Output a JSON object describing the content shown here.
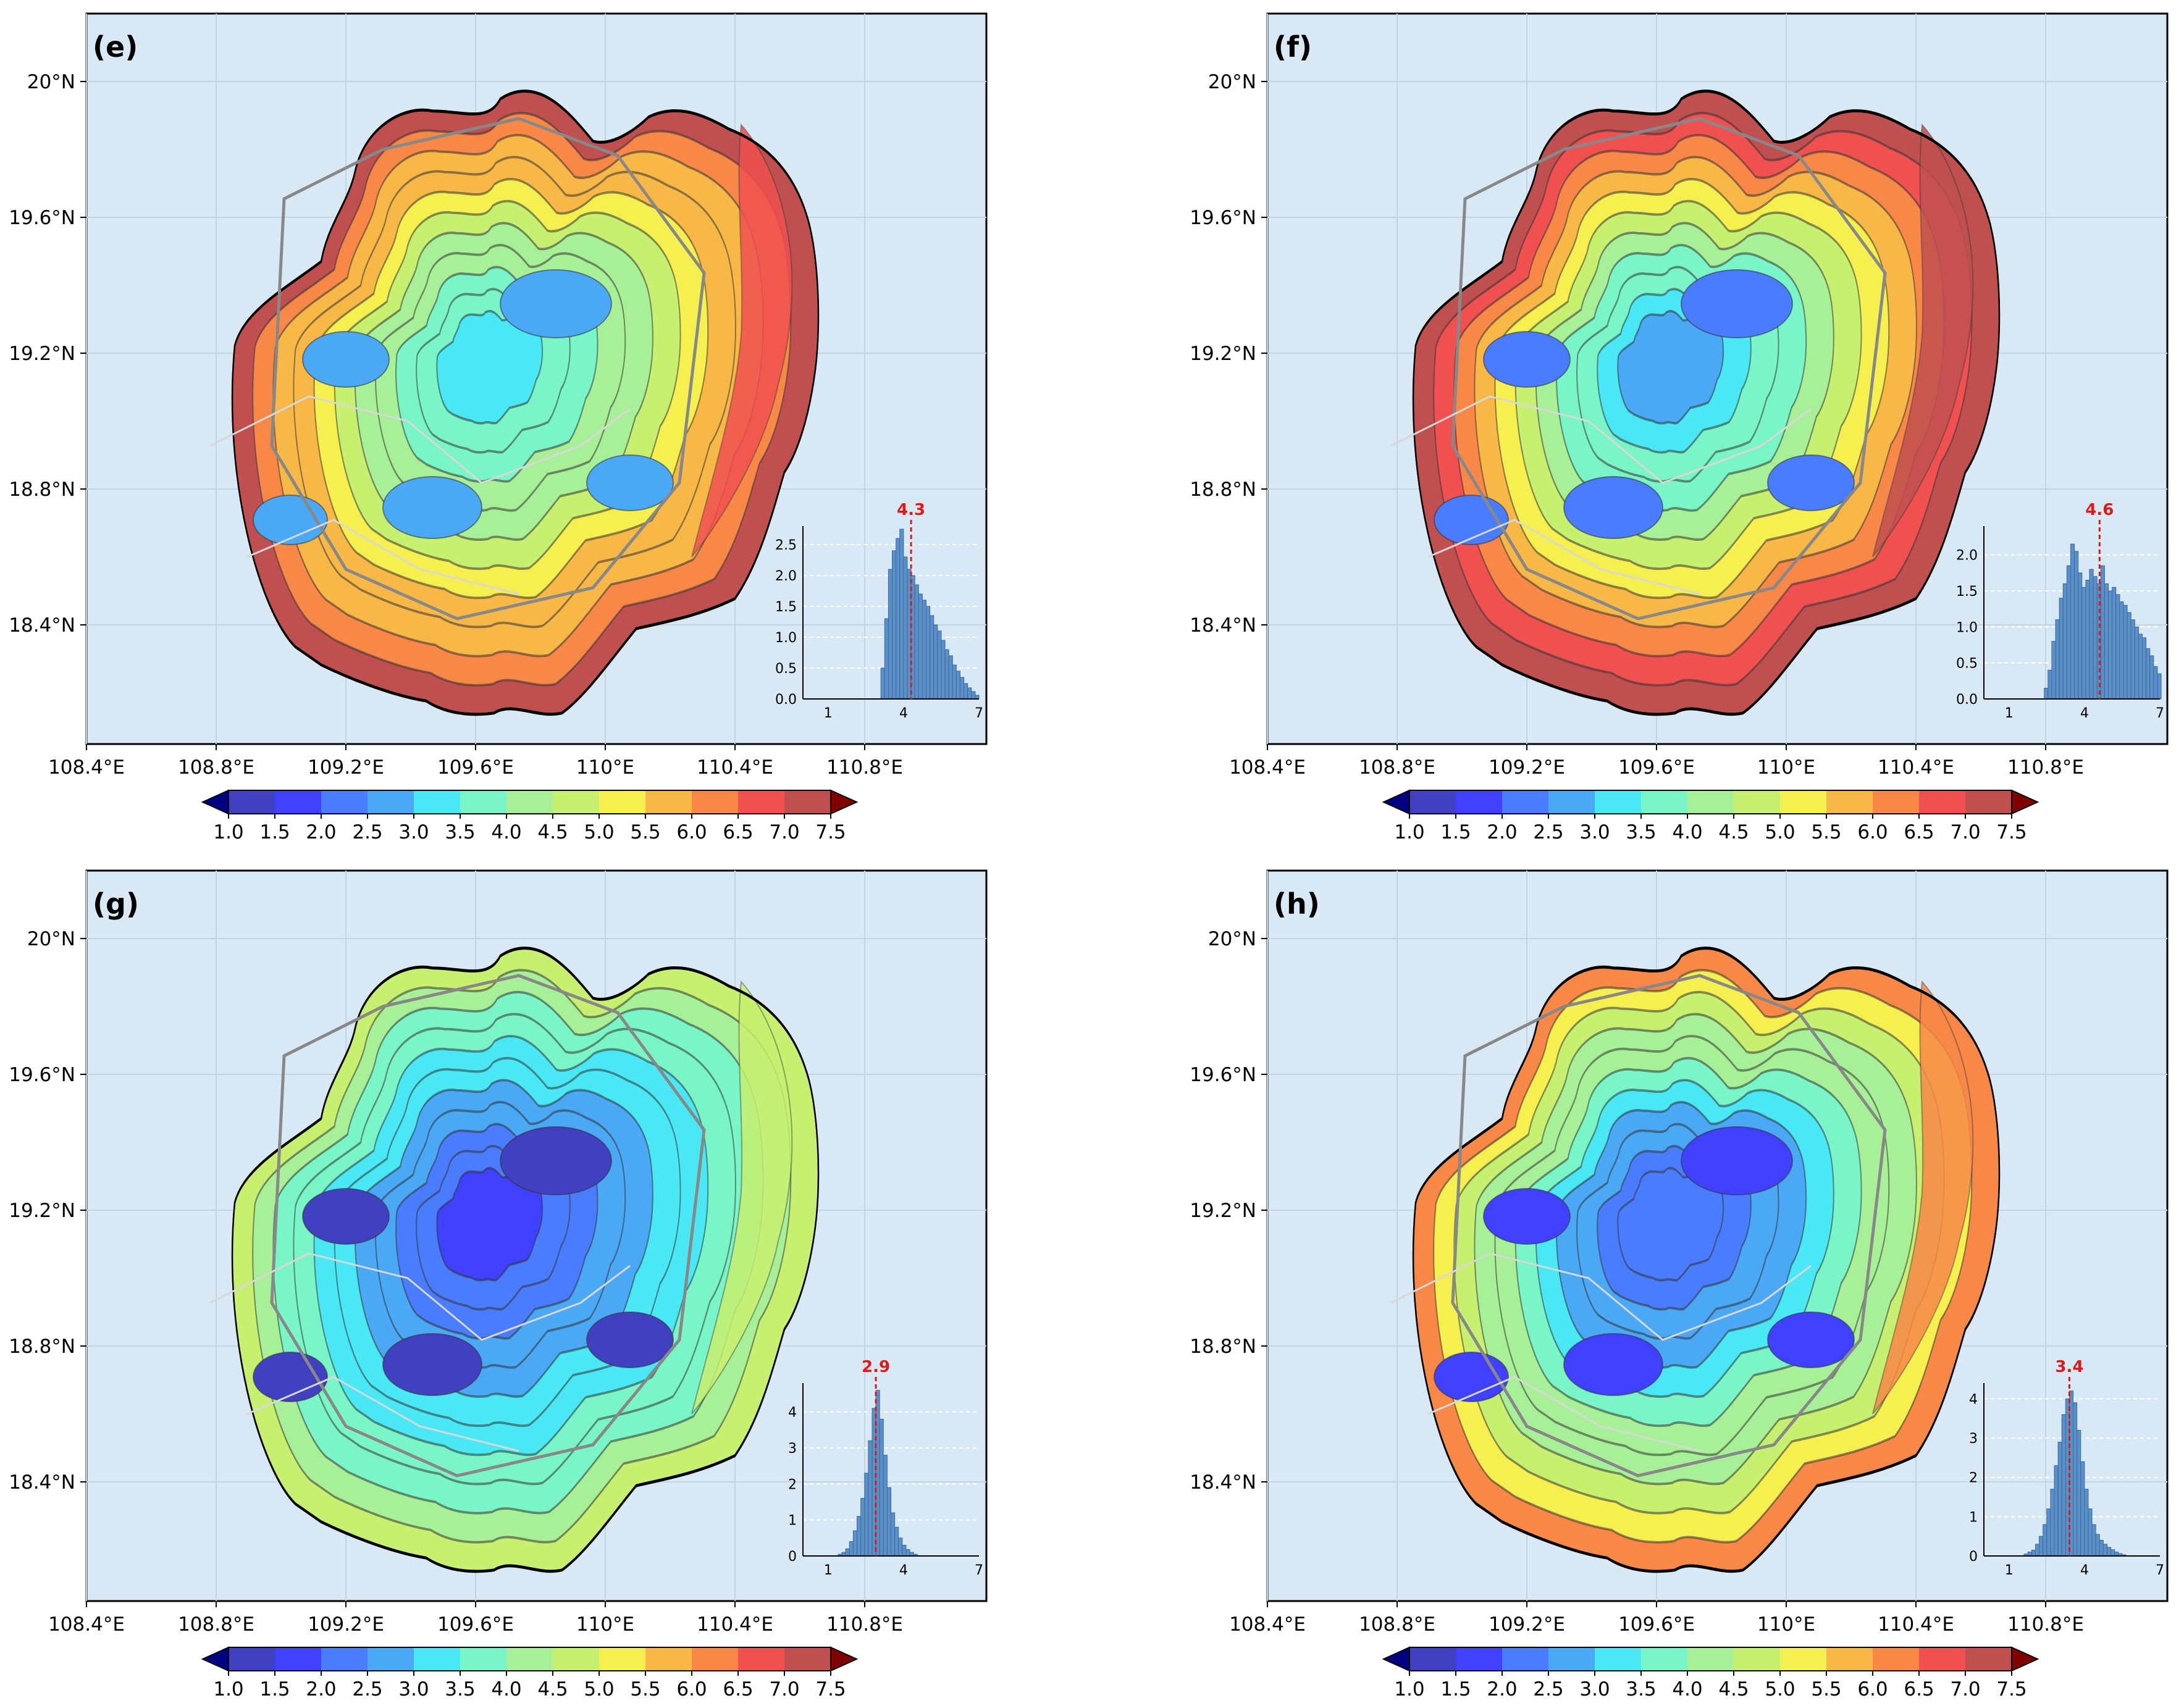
{
  "palette": [
    "#000080",
    "#4040c0",
    "#4040ff",
    "#4a7cff",
    "#4aa8f5",
    "#4ae8f5",
    "#7af5c8",
    "#a8f098",
    "#c8f070",
    "#f5f050",
    "#f8b848",
    "#f88848",
    "#f05050",
    "#c05050",
    "#800000"
  ],
  "ocean_color": "#d8e8f4",
  "hist_color": "#5b8fc8",
  "mean_color": "#e01818",
  "colorbar_labels": [
    "1.0",
    "1.5",
    "2.0",
    "2.5",
    "3.0",
    "3.5",
    "4.0",
    "4.5",
    "5.0",
    "5.5",
    "6.0",
    "6.5",
    "7.0",
    "7.5"
  ],
  "axes": {
    "x_ticks": [
      "108.4°E",
      "108.8°E",
      "109.2°E",
      "109.6°E",
      "110°E",
      "110.4°E",
      "110.8°E"
    ],
    "y_ticks": [
      "20°N",
      "19.6°N",
      "19.2°N",
      "18.8°N",
      "18.4°N"
    ]
  },
  "chart_data": [
    {
      "type": "heatmap",
      "label": "(e)",
      "field": {
        "center": 3.2,
        "edge": 7.0,
        "east_boost": 0.5
      },
      "hist": {
        "mean_label": "4.3",
        "mean": 4.3,
        "xlim": [
          0,
          7
        ],
        "ylim": [
          0,
          2.8
        ],
        "xticks": [
          "1",
          "4",
          "7"
        ],
        "yticks": [
          "0.0",
          "0.5",
          "1.0",
          "1.5",
          "2.0",
          "2.5"
        ],
        "bins_x": [
          3.1,
          3.25,
          3.4,
          3.55,
          3.7,
          3.85,
          4.0,
          4.15,
          4.3,
          4.45,
          4.6,
          4.75,
          4.9,
          5.05,
          5.2,
          5.35,
          5.5,
          5.65,
          5.8,
          5.95,
          6.1,
          6.25,
          6.4,
          6.55,
          6.7,
          6.85
        ],
        "values": [
          0.5,
          1.3,
          2.1,
          2.4,
          2.6,
          2.75,
          2.3,
          2.1,
          2.0,
          1.85,
          1.7,
          1.6,
          1.5,
          1.35,
          1.2,
          1.1,
          0.95,
          0.8,
          0.7,
          0.55,
          0.45,
          0.35,
          0.25,
          0.18,
          0.12,
          0.06
        ]
      }
    },
    {
      "type": "heatmap",
      "label": "(f)",
      "field": {
        "center": 2.8,
        "edge": 7.3,
        "east_boost": 0.6
      },
      "hist": {
        "mean_label": "4.6",
        "mean": 4.6,
        "xlim": [
          0,
          7
        ],
        "ylim": [
          0,
          2.4
        ],
        "xticks": [
          "1",
          "4",
          "7"
        ],
        "yticks": [
          "0.0",
          "0.5",
          "1.0",
          "1.5",
          "2.0"
        ],
        "bins_x": [
          2.4,
          2.55,
          2.7,
          2.85,
          3.0,
          3.15,
          3.3,
          3.45,
          3.6,
          3.75,
          3.9,
          4.05,
          4.2,
          4.35,
          4.5,
          4.65,
          4.8,
          4.95,
          5.1,
          5.25,
          5.4,
          5.55,
          5.7,
          5.85,
          6.0,
          6.15,
          6.3,
          6.45,
          6.6,
          6.75,
          6.9
        ],
        "values": [
          0.15,
          0.4,
          0.8,
          1.1,
          1.4,
          1.6,
          1.85,
          2.15,
          2.05,
          1.75,
          1.55,
          1.65,
          1.8,
          1.7,
          1.6,
          1.85,
          1.6,
          1.5,
          1.55,
          1.45,
          1.35,
          1.3,
          1.2,
          1.1,
          1.0,
          0.9,
          0.85,
          0.7,
          0.6,
          0.45,
          0.35
        ]
      }
    },
    {
      "type": "heatmap",
      "label": "(g)",
      "field": {
        "center": 1.8,
        "edge": 4.8,
        "east_boost": 0.3
      },
      "hist": {
        "mean_label": "2.9",
        "mean": 2.9,
        "xlim": [
          0,
          7
        ],
        "ylim": [
          0,
          4.8
        ],
        "xticks": [
          "1",
          "4",
          "7"
        ],
        "yticks": [
          "0",
          "1",
          "2",
          "3",
          "4"
        ],
        "bins_x": [
          1.4,
          1.55,
          1.7,
          1.85,
          2.0,
          2.15,
          2.3,
          2.45,
          2.6,
          2.75,
          2.9,
          3.05,
          3.2,
          3.35,
          3.5,
          3.65,
          3.8,
          3.95,
          4.1,
          4.25,
          4.4
        ],
        "values": [
          0.05,
          0.1,
          0.2,
          0.4,
          0.7,
          1.1,
          1.6,
          2.3,
          3.2,
          4.1,
          4.6,
          3.8,
          2.8,
          1.9,
          1.2,
          0.8,
          0.5,
          0.3,
          0.18,
          0.1,
          0.05
        ]
      }
    },
    {
      "type": "heatmap",
      "label": "(h)",
      "field": {
        "center": 2.0,
        "edge": 6.0,
        "east_boost": 0.6
      },
      "hist": {
        "mean_label": "3.4",
        "mean": 3.4,
        "xlim": [
          0,
          7
        ],
        "ylim": [
          0,
          4.4
        ],
        "xticks": [
          "1",
          "4",
          "7"
        ],
        "yticks": [
          "0",
          "1",
          "2",
          "3",
          "4"
        ],
        "bins_x": [
          1.6,
          1.75,
          1.9,
          2.05,
          2.2,
          2.35,
          2.5,
          2.65,
          2.8,
          2.95,
          3.1,
          3.25,
          3.4,
          3.55,
          3.7,
          3.85,
          4.0,
          4.15,
          4.3,
          4.45,
          4.6,
          4.75,
          4.9,
          5.05,
          5.2,
          5.35,
          5.5
        ],
        "values": [
          0.05,
          0.1,
          0.15,
          0.3,
          0.5,
          0.8,
          1.2,
          1.7,
          2.3,
          2.9,
          3.6,
          4.0,
          4.2,
          3.9,
          3.2,
          2.4,
          1.7,
          1.2,
          0.8,
          0.55,
          0.4,
          0.3,
          0.22,
          0.16,
          0.1,
          0.06,
          0.03
        ]
      }
    }
  ]
}
